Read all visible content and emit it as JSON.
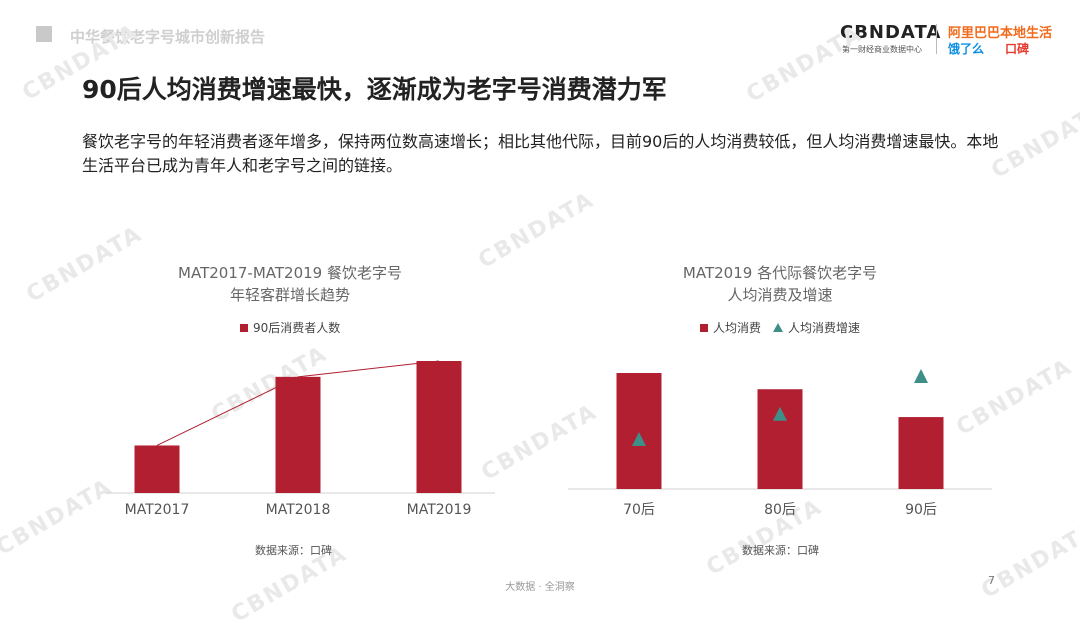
{
  "header": {
    "report_title": "中华餐饮老字号城市创新报告",
    "brand_cbn": "CBNDATA",
    "brand_cbn_sub": "第一财经商业数据中心",
    "brand_alibaba": "阿里巴巴本地生活",
    "brand_eleme": "饿了么",
    "brand_koubei": "口碑"
  },
  "heading": "90后人均消费增速最快，逐渐成为老字号消费潜力军",
  "summary": "餐饮老字号的年轻消费者逐年增多，保持两位数高速增长；相比其他代际，目前90后的人均消费较低，但人均消费增速最快。本地生活平台已成为青年人和老字号之间的链接。",
  "watermark_text": "CBNDATA",
  "colors": {
    "bar": "#b11f30",
    "marker": "#3e8f88",
    "line": "#b11f30"
  },
  "chart_data": [
    {
      "type": "bar",
      "title_line1": "MAT2017-MAT2019 餐饮老字号",
      "title_line2": "年轻客群增长趋势",
      "legend": "90后消费者人数",
      "categories": [
        "MAT2017",
        "MAT2018",
        "MAT2019"
      ],
      "series": [
        {
          "name": "90后消费者人数",
          "values": [
            0.36,
            0.88,
            1.0
          ]
        }
      ],
      "connector_line": true,
      "source": "数据来源：口碑"
    },
    {
      "type": "bar",
      "title_line1": "MAT2019 各代际餐饮老字号",
      "title_line2": "人均消费及增速",
      "legend_bar": "人均消费",
      "legend_marker": "人均消费增速",
      "categories": [
        "70后",
        "80后",
        "90后"
      ],
      "series": [
        {
          "name": "人均消费",
          "values": [
            1.0,
            0.86,
            0.62
          ]
        },
        {
          "name": "人均消费增速",
          "values": [
            0.5,
            0.6,
            0.75
          ]
        }
      ],
      "source": "数据来源：口碑"
    }
  ],
  "footer": {
    "text": "大数据 · 全洞察",
    "page": "7"
  }
}
